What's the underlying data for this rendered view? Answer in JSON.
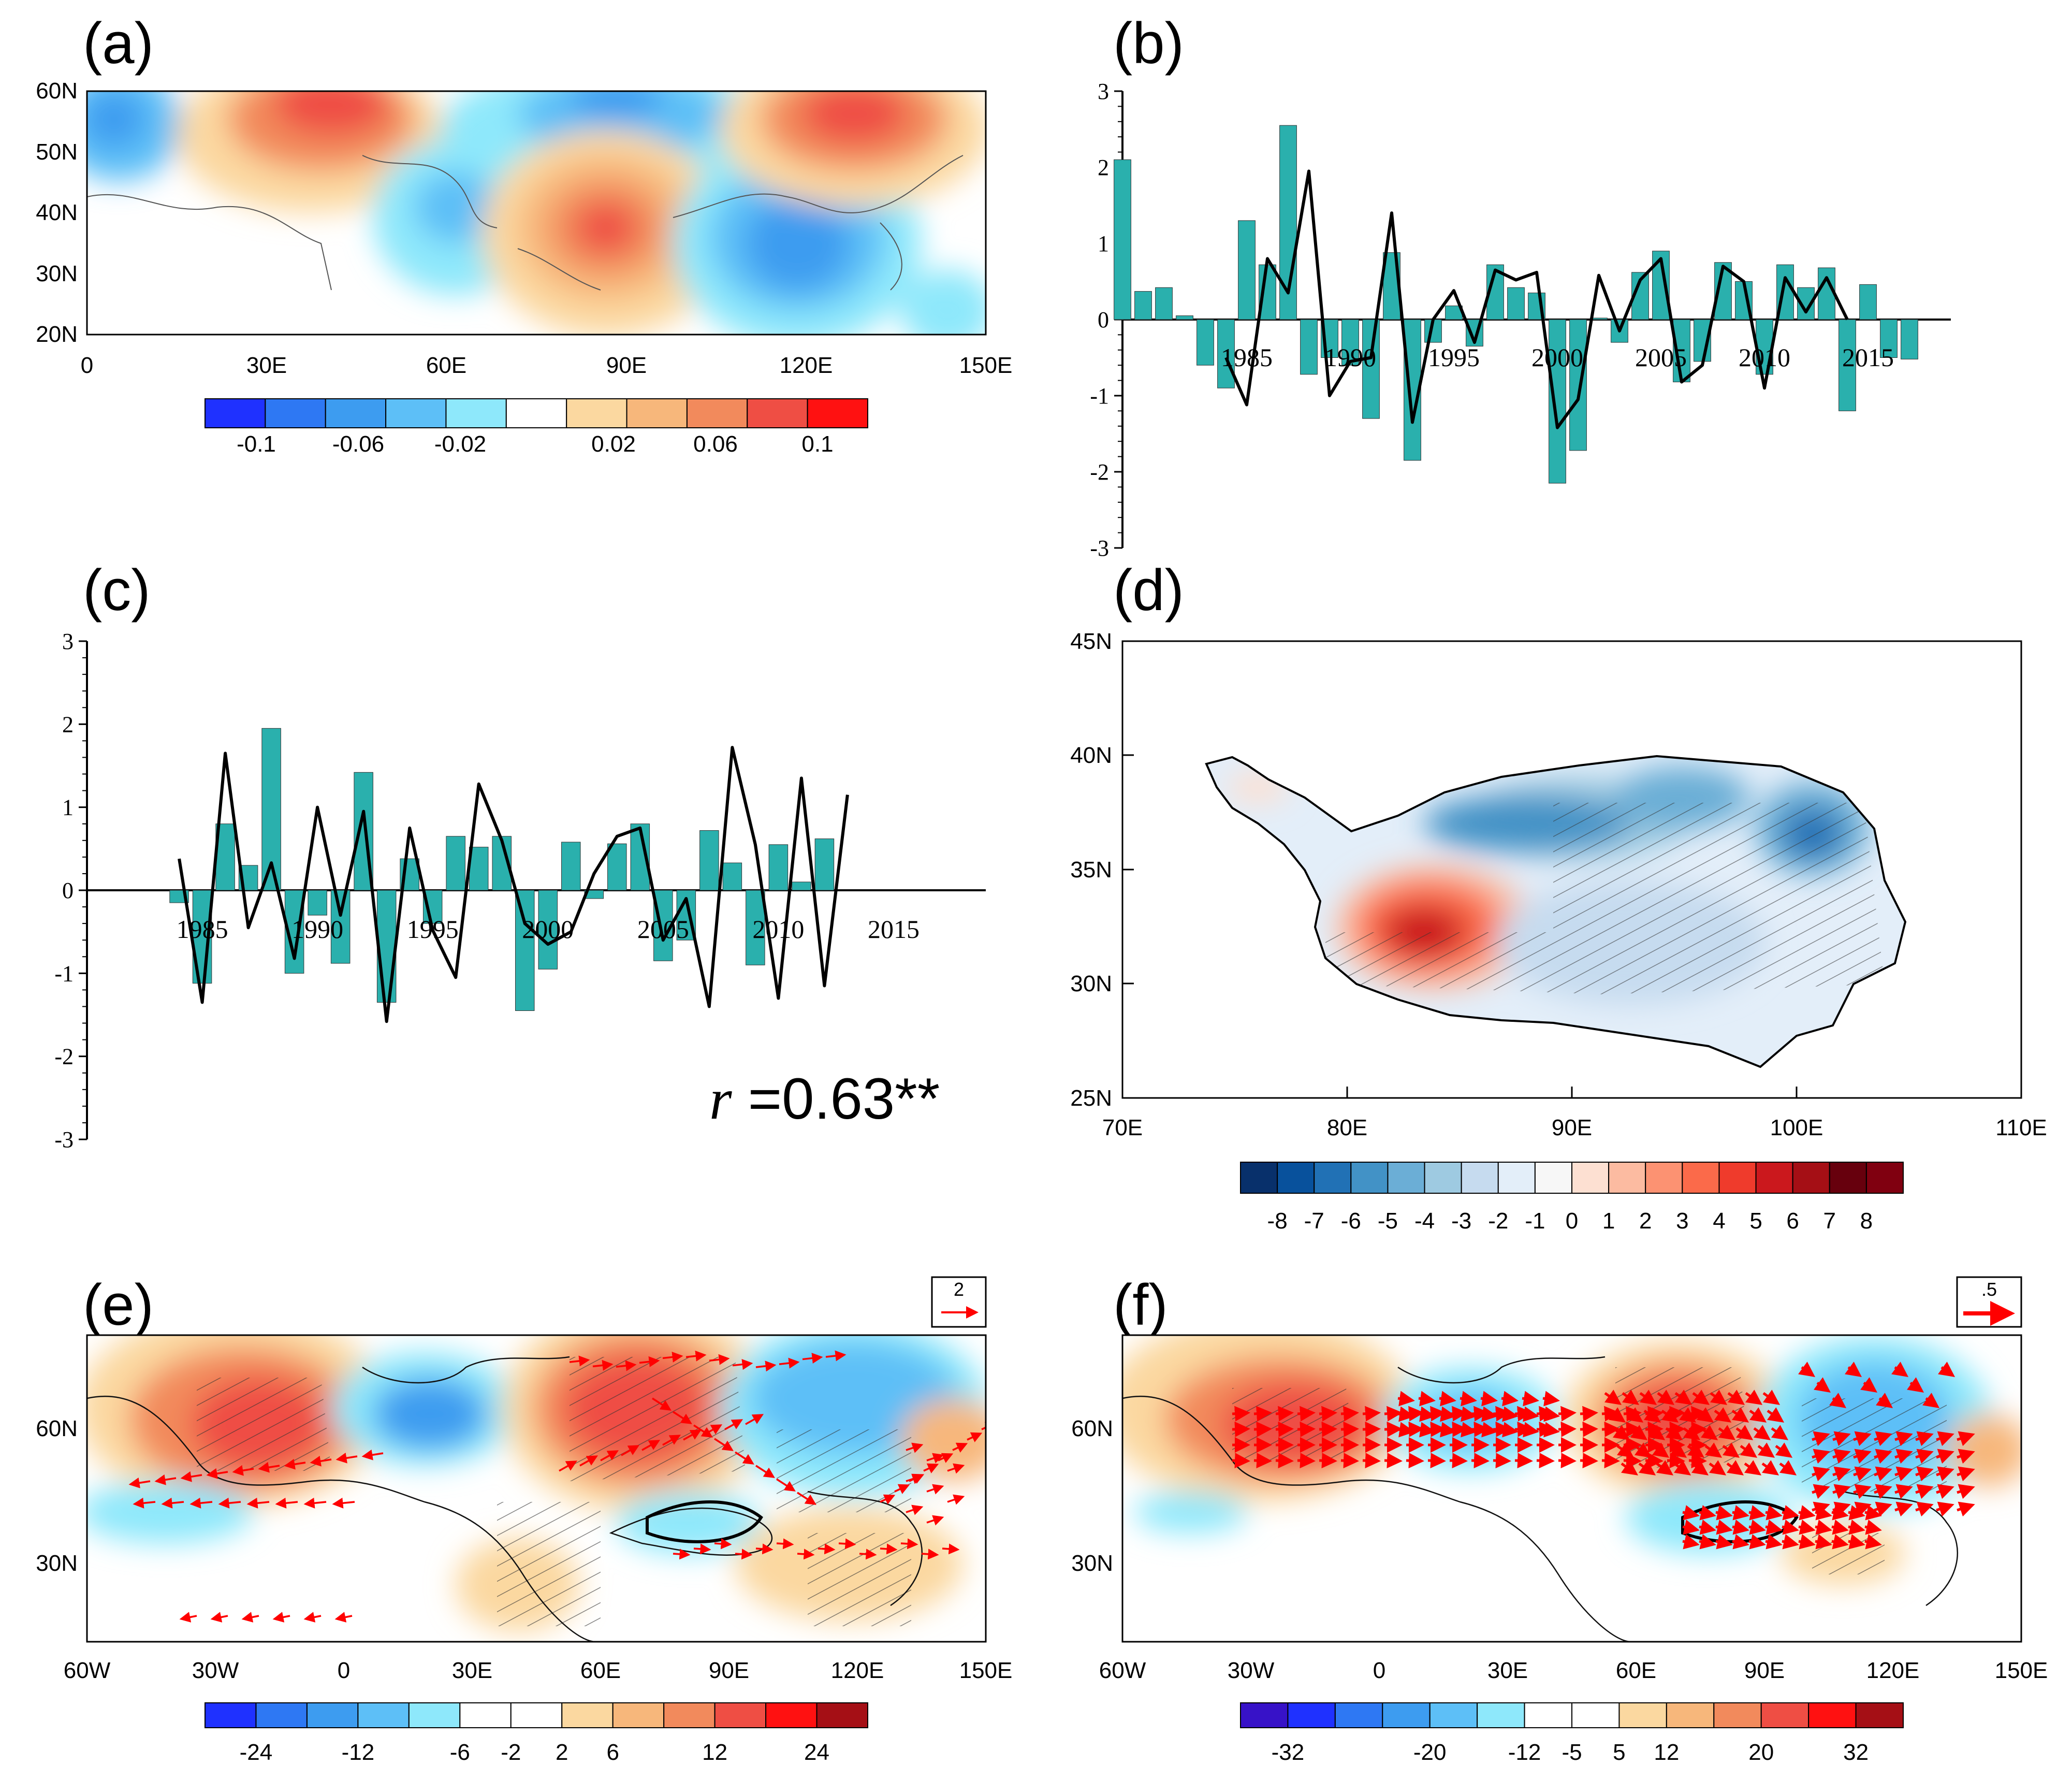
{
  "colors": {
    "bar": "#2ab0ad",
    "line": "#000000",
    "vector": "#ff0000",
    "palette_blue_red_11": [
      "#1f31ff",
      "#2e78f3",
      "#3d9cf0",
      "#5dbff7",
      "#8ee8fb",
      "#ffffff",
      "#fbd8a0",
      "#f7b77b",
      "#f28a5c",
      "#ef4e44",
      "#ff1111"
    ],
    "palette_div_17": [
      "#08306b",
      "#08519c",
      "#2171b5",
      "#4292c6",
      "#6baed6",
      "#9ecae1",
      "#c6dbef",
      "#e3eef9",
      "#f7f7f7",
      "#fde0d2",
      "#fcbba1",
      "#fc9272",
      "#fb6a4a",
      "#ef3b2c",
      "#cb181d",
      "#a50f15",
      "#67000d"
    ]
  },
  "panel_labels": [
    "(a)",
    "(b)",
    "(c)",
    "(d)",
    "(e)",
    "(f)"
  ],
  "panel_a": {
    "lat_ticks": [
      "60N",
      "50N",
      "40N",
      "30N",
      "20N"
    ],
    "lon_ticks": [
      "0",
      "30E",
      "60E",
      "90E",
      "120E",
      "150E"
    ],
    "colorbar_labels": [
      "-0.1",
      "-0.06",
      "-0.02",
      "0.02",
      "0.06",
      "0.1"
    ]
  },
  "panel_d": {
    "lat_ticks": [
      "45N",
      "40N",
      "35N",
      "30N",
      "25N"
    ],
    "lon_ticks": [
      "70E",
      "80E",
      "90E",
      "100E",
      "110E"
    ],
    "colorbar_labels": [
      "-8",
      "-7",
      "-6",
      "-5",
      "-4",
      "-3",
      "-2",
      "-1",
      "0",
      "1",
      "2",
      "3",
      "4",
      "5",
      "6",
      "7",
      "8"
    ]
  },
  "panel_e": {
    "lat_ticks": [
      "60N",
      "30N"
    ],
    "lon_ticks": [
      "60W",
      "30W",
      "0",
      "30E",
      "60E",
      "90E",
      "120E",
      "150E"
    ],
    "colorbar_labels": [
      "-24",
      "-12",
      "-6",
      "-2",
      "2",
      "6",
      "12",
      "24"
    ],
    "ref_vector": "2"
  },
  "panel_f": {
    "lat_ticks": [
      "60N",
      "30N"
    ],
    "lon_ticks": [
      "60W",
      "30W",
      "0",
      "30E",
      "60E",
      "90E",
      "120E",
      "150E"
    ],
    "colorbar_labels": [
      "-32",
      "-20",
      "-12",
      "-5",
      "5",
      "12",
      "20",
      "32"
    ],
    "ref_vector": ".5"
  },
  "correlation_text": "r =0.63**",
  "chart_data": [
    {
      "type": "bar",
      "panel": "(b)",
      "title": "",
      "xlabel": "",
      "ylabel": "",
      "ylim": [
        -3,
        3
      ],
      "yticks": [
        "3",
        "2",
        "1",
        "0",
        "-1",
        "-2",
        "-3"
      ],
      "xticks": [
        "1985",
        "1990",
        "1995",
        "2000",
        "2005",
        "2010",
        "2015"
      ],
      "x_start": 1979,
      "series": [
        {
          "name": "bars",
          "values": [
            2.1,
            0.37,
            0.42,
            0.05,
            -0.6,
            -0.9,
            1.3,
            0.72,
            2.55,
            -0.72,
            -0.5,
            -0.6,
            -1.3,
            0.88,
            -1.85,
            -0.3,
            0.18,
            -0.35,
            0.72,
            0.42,
            0.35,
            -2.15,
            -1.72,
            0.02,
            -0.3,
            0.62,
            0.9,
            -0.82,
            -0.55,
            0.75,
            0.5,
            -0.72,
            0.72,
            0.42,
            0.68,
            -1.2,
            0.46,
            -0.5,
            -0.52
          ]
        },
        {
          "name": "line",
          "x": [
            1984,
            1985,
            1986,
            1987,
            1988,
            1989,
            1990,
            1991,
            1992,
            1993,
            1994,
            1995,
            1996,
            1997,
            1998,
            1999,
            2000,
            2001,
            2002,
            2003,
            2004,
            2005,
            2006,
            2007,
            2008,
            2009,
            2010,
            2011,
            2012,
            2013,
            2014
          ],
          "values": [
            -0.5,
            -1.12,
            0.8,
            0.35,
            1.95,
            -1.0,
            -0.55,
            -0.5,
            1.4,
            -1.35,
            0.0,
            0.38,
            -0.3,
            0.65,
            0.52,
            0.62,
            -1.42,
            -1.05,
            0.58,
            -0.15,
            0.52,
            0.8,
            -0.82,
            -0.6,
            0.7,
            0.5,
            -0.9,
            0.55,
            0.1,
            0.55,
            0.0
          ]
        }
      ]
    },
    {
      "type": "bar",
      "panel": "(c)",
      "title": "",
      "xlabel": "",
      "ylabel": "",
      "ylim": [
        -3,
        3
      ],
      "yticks": [
        "3",
        "2",
        "1",
        "0",
        "-1",
        "-2",
        "-3"
      ],
      "xticks": [
        "1985",
        "1990",
        "1995",
        "2000",
        "2005",
        "2010",
        "2015"
      ],
      "x_start": 1984,
      "series": [
        {
          "name": "bars",
          "values": [
            -0.15,
            -1.12,
            0.8,
            0.3,
            1.95,
            -1.0,
            -0.3,
            -0.88,
            1.42,
            -1.35,
            0.38,
            -0.4,
            0.65,
            0.52,
            0.65,
            -1.45,
            -0.95,
            0.58,
            -0.1,
            0.56,
            0.8,
            -0.85,
            -0.6,
            0.72,
            0.33,
            -0.9,
            0.55,
            0.1,
            0.62
          ]
        },
        {
          "name": "line",
          "values": [
            0.38,
            -1.35,
            1.65,
            -0.45,
            0.33,
            -0.82,
            1.0,
            -0.3,
            0.95,
            -1.58,
            0.75,
            -0.48,
            -1.05,
            1.28,
            0.6,
            -0.4,
            -0.65,
            -0.5,
            0.2,
            0.65,
            0.75,
            -0.6,
            -0.1,
            -1.4,
            1.72,
            0.55,
            -1.3,
            1.35,
            -1.15,
            1.15
          ]
        }
      ],
      "annotation": "r =0.63**"
    }
  ]
}
